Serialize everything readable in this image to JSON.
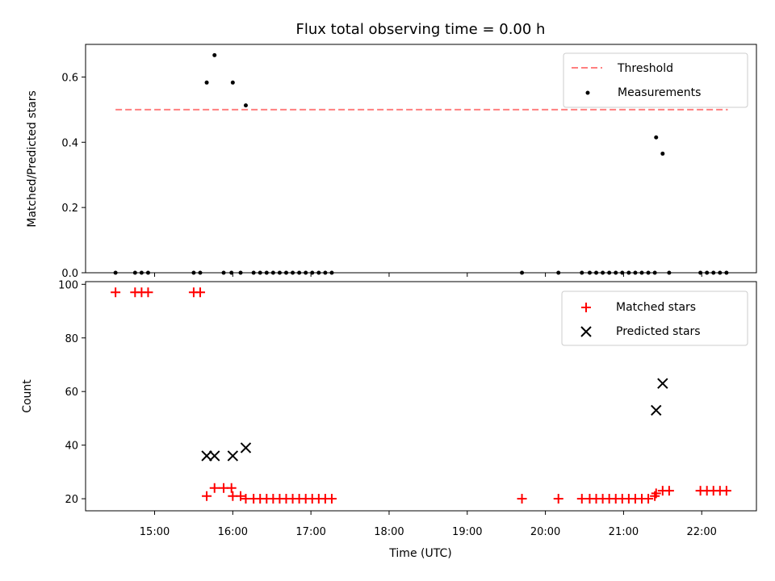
{
  "chart_data": [
    {
      "type": "scatter",
      "title": "Flux total observing time = 0.00 h",
      "xlabel": "",
      "ylabel": "Matched/Predicted stars",
      "xlim": [
        "14:07",
        "22:42"
      ],
      "ylim": [
        0,
        0.7
      ],
      "yticks": [
        "0.0",
        "0.2",
        "0.4",
        "0.6"
      ],
      "ytick_values": [
        0,
        0.2,
        0.4,
        0.6
      ],
      "legend_position": "top-right",
      "threshold": {
        "name": "Threshold",
        "value": 0.5,
        "x_start": "14:30",
        "x_end": "22:20",
        "color": "#ff7f7f"
      },
      "series": [
        {
          "name": "Measurements",
          "color": "#000000",
          "points": [
            [
              "14:30",
              0
            ],
            [
              "14:45",
              0
            ],
            [
              "14:50",
              0
            ],
            [
              "14:55",
              0
            ],
            [
              "15:30",
              0
            ],
            [
              "15:35",
              0
            ],
            [
              "15:40",
              0.583
            ],
            [
              "15:46",
              0.667
            ],
            [
              "15:53",
              0
            ],
            [
              "15:59",
              0
            ],
            [
              "16:00",
              0.583
            ],
            [
              "16:06",
              0
            ],
            [
              "16:10",
              0.513
            ],
            [
              "16:16",
              0
            ],
            [
              "16:21",
              0
            ],
            [
              "16:26",
              0
            ],
            [
              "16:31",
              0
            ],
            [
              "16:36",
              0
            ],
            [
              "16:41",
              0
            ],
            [
              "16:46",
              0
            ],
            [
              "16:51",
              0
            ],
            [
              "16:56",
              0
            ],
            [
              "17:01",
              0
            ],
            [
              "17:06",
              0
            ],
            [
              "17:11",
              0
            ],
            [
              "17:16",
              0
            ],
            [
              "19:42",
              0
            ],
            [
              "20:10",
              0
            ],
            [
              "20:28",
              0
            ],
            [
              "20:34",
              0
            ],
            [
              "20:39",
              0
            ],
            [
              "20:44",
              0
            ],
            [
              "20:49",
              0
            ],
            [
              "20:54",
              0
            ],
            [
              "20:59",
              0
            ],
            [
              "21:04",
              0
            ],
            [
              "21:09",
              0
            ],
            [
              "21:14",
              0
            ],
            [
              "21:19",
              0
            ],
            [
              "21:24",
              0
            ],
            [
              "21:25",
              0.415
            ],
            [
              "21:30",
              0.365
            ],
            [
              "21:35",
              0
            ],
            [
              "21:59",
              0
            ],
            [
              "22:04",
              0
            ],
            [
              "22:09",
              0
            ],
            [
              "22:14",
              0
            ],
            [
              "22:19",
              0
            ]
          ]
        }
      ]
    },
    {
      "type": "scatter",
      "title": "",
      "xlabel": "Time (UTC)",
      "ylabel": "Count",
      "xlim": [
        "14:07",
        "22:42"
      ],
      "ylim": [
        15.5,
        101
      ],
      "yticks": [
        "20",
        "40",
        "60",
        "80",
        "100"
      ],
      "ytick_values": [
        20,
        40,
        60,
        80,
        100
      ],
      "xticks": [
        "15:00",
        "16:00",
        "17:00",
        "18:00",
        "19:00",
        "20:00",
        "21:00",
        "22:00"
      ],
      "legend_position": "top-right",
      "series": [
        {
          "name": "Matched stars",
          "marker": "+",
          "color": "#ff0000",
          "points": [
            [
              "14:30",
              97
            ],
            [
              "14:45",
              97
            ],
            [
              "14:50",
              97
            ],
            [
              "14:55",
              97
            ],
            [
              "15:30",
              97
            ],
            [
              "15:35",
              97
            ],
            [
              "15:40",
              21
            ],
            [
              "15:46",
              24
            ],
            [
              "15:53",
              24
            ],
            [
              "15:59",
              24
            ],
            [
              "16:00",
              21
            ],
            [
              "16:06",
              21
            ],
            [
              "16:10",
              20
            ],
            [
              "16:16",
              20
            ],
            [
              "16:21",
              20
            ],
            [
              "16:26",
              20
            ],
            [
              "16:31",
              20
            ],
            [
              "16:36",
              20
            ],
            [
              "16:41",
              20
            ],
            [
              "16:46",
              20
            ],
            [
              "16:51",
              20
            ],
            [
              "16:56",
              20
            ],
            [
              "17:01",
              20
            ],
            [
              "17:06",
              20
            ],
            [
              "17:11",
              20
            ],
            [
              "17:16",
              20
            ],
            [
              "19:42",
              20
            ],
            [
              "20:10",
              20
            ],
            [
              "20:28",
              20
            ],
            [
              "20:34",
              20
            ],
            [
              "20:39",
              20
            ],
            [
              "20:44",
              20
            ],
            [
              "20:49",
              20
            ],
            [
              "20:54",
              20
            ],
            [
              "20:59",
              20
            ],
            [
              "21:04",
              20
            ],
            [
              "21:09",
              20
            ],
            [
              "21:14",
              20
            ],
            [
              "21:19",
              20
            ],
            [
              "21:24",
              21
            ],
            [
              "21:25",
              22
            ],
            [
              "21:30",
              23
            ],
            [
              "21:35",
              23
            ],
            [
              "21:59",
              23
            ],
            [
              "22:04",
              23
            ],
            [
              "22:09",
              23
            ],
            [
              "22:14",
              23
            ],
            [
              "22:19",
              23
            ]
          ]
        },
        {
          "name": "Predicted stars",
          "marker": "x",
          "color": "#000000",
          "points": [
            [
              "15:40",
              36
            ],
            [
              "15:46",
              36
            ],
            [
              "16:00",
              36
            ],
            [
              "16:10",
              39
            ],
            [
              "21:25",
              53
            ],
            [
              "21:30",
              63
            ]
          ]
        }
      ]
    }
  ]
}
